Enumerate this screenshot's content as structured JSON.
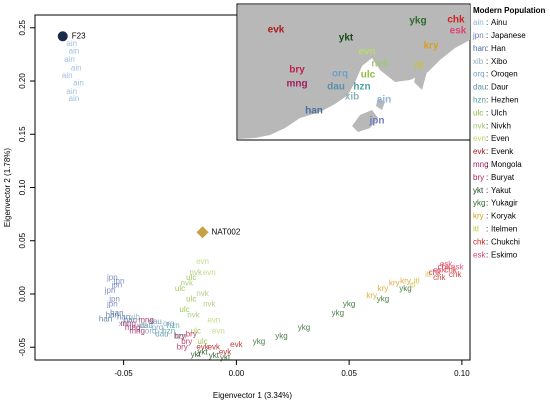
{
  "chart_data": {
    "type": "scatter",
    "xlabel": "Eigenvector 1 (3.34%)",
    "ylabel": "Eigenvector 2 (1.78%)",
    "xlim": [
      -0.0893,
      0.1036
    ],
    "ylim": [
      -0.062,
      0.262
    ],
    "xticks": [
      -0.05,
      {
        "value": 0,
        "label": "0.00"
      },
      0.05,
      {
        "value": 0.1,
        "label": "0.10"
      }
    ],
    "yticks": [
      -0.05,
      {
        "value": 0,
        "label": "0.00"
      },
      0.05,
      {
        "value": 0.1,
        "label": "0.10"
      },
      0.15,
      {
        "value": 0.2,
        "label": "0.20"
      },
      0.25
    ],
    "legend_title": "Modern Population",
    "series": [
      {
        "code": "ain",
        "name": "Ainu",
        "color": "#8fb4d9",
        "x": [
          -0.073,
          -0.072,
          -0.074,
          -0.071,
          -0.075,
          -0.07,
          -0.073,
          -0.072
        ],
        "y": [
          0.235,
          0.228,
          0.22,
          0.212,
          0.205,
          0.198,
          0.19,
          0.183
        ]
      },
      {
        "code": "jpn",
        "name": "Japanese",
        "color": "#6f7fc0",
        "x": [
          -0.055,
          -0.053,
          -0.056,
          -0.054,
          -0.052,
          -0.055
        ],
        "y": [
          0.015,
          0.008,
          0.003,
          -0.005,
          0.012,
          -0.01
        ]
      },
      {
        "code": "han",
        "name": "Han",
        "color": "#4a6fa0",
        "x": [
          -0.055,
          -0.05,
          -0.058,
          -0.053,
          -0.047
        ],
        "y": [
          -0.02,
          -0.022,
          -0.024,
          -0.018,
          -0.025
        ]
      },
      {
        "code": "xib",
        "name": "Xibo",
        "color": "#8fb0b8",
        "x": [
          -0.05,
          -0.045,
          -0.042
        ],
        "y": [
          -0.028,
          -0.022,
          -0.03
        ]
      },
      {
        "code": "orq",
        "name": "Oroqen",
        "color": "#6fa0c8",
        "x": [
          -0.035,
          -0.03,
          -0.038
        ],
        "y": [
          -0.032,
          -0.028,
          -0.035
        ]
      },
      {
        "code": "dau",
        "name": "Daur",
        "color": "#5b8fa8",
        "x": [
          -0.04,
          -0.036,
          -0.033
        ],
        "y": [
          -0.03,
          -0.026,
          -0.038
        ]
      },
      {
        "code": "hzn",
        "name": "Hezhen",
        "color": "#4fa0a0",
        "x": [
          -0.03,
          -0.025,
          -0.028
        ],
        "y": [
          -0.035,
          -0.04,
          -0.03
        ]
      },
      {
        "code": "ulc",
        "name": "Ulch",
        "color": "#8fc040",
        "x": [
          -0.025,
          -0.02,
          -0.023,
          -0.018,
          -0.015,
          -0.02
        ],
        "y": [
          0.005,
          -0.005,
          -0.015,
          -0.035,
          -0.045,
          0.015
        ]
      },
      {
        "code": "nvk",
        "name": "Nivkh",
        "color": "#a0c878",
        "x": [
          -0.018,
          -0.022,
          -0.015,
          -0.012,
          -0.019
        ],
        "y": [
          0.02,
          0.01,
          0.0,
          -0.01,
          -0.02
        ]
      },
      {
        "code": "evn",
        "name": "Even",
        "color": "#b8d870",
        "x": [
          -0.015,
          -0.012,
          -0.01,
          -0.008
        ],
        "y": [
          0.03,
          0.02,
          -0.025,
          -0.035
        ]
      },
      {
        "code": "evk",
        "name": "Evenk",
        "color": "#b01818",
        "x": [
          -0.01,
          -0.005,
          -0.015,
          0.0
        ],
        "y": [
          -0.05,
          -0.055,
          -0.05,
          -0.048
        ]
      },
      {
        "code": "mng",
        "name": "Mongola",
        "color": "#a02060",
        "x": [
          -0.048,
          -0.044,
          -0.04,
          -0.046
        ],
        "y": [
          -0.028,
          -0.035,
          -0.025,
          -0.032
        ]
      },
      {
        "code": "bry",
        "name": "Buryat",
        "color": "#c02050",
        "x": [
          -0.025,
          -0.022,
          -0.02,
          -0.024
        ],
        "y": [
          -0.04,
          -0.045,
          -0.038,
          -0.05
        ]
      },
      {
        "code": "ykt",
        "name": "Yakut",
        "color": "#1a4a1a",
        "x": [
          -0.015,
          -0.01,
          -0.005,
          -0.018
        ],
        "y": [
          -0.055,
          -0.058,
          -0.06,
          -0.057
        ]
      },
      {
        "code": "ykg",
        "name": "Yukagir",
        "color": "#2d6a2d",
        "x": [
          0.02,
          0.03,
          0.045,
          0.05,
          0.065,
          0.075,
          0.01
        ],
        "y": [
          -0.04,
          -0.032,
          -0.018,
          -0.01,
          -0.005,
          0.005,
          -0.045
        ]
      },
      {
        "code": "kry",
        "name": "Koryak",
        "color": "#d8a020",
        "x": [
          0.065,
          0.07,
          0.075,
          0.06
        ],
        "y": [
          0.005,
          0.01,
          0.012,
          -0.002
        ]
      },
      {
        "code": "itl",
        "name": "Itelmen",
        "color": "#c8c040",
        "x": [
          0.08,
          0.085,
          0.078
        ],
        "y": [
          0.012,
          0.018,
          0.008
        ]
      },
      {
        "code": "chk",
        "name": "Chukchi",
        "color": "#d02020",
        "x": [
          0.088,
          0.092,
          0.095,
          0.09,
          0.097
        ],
        "y": [
          0.02,
          0.025,
          0.022,
          0.015,
          0.018
        ]
      },
      {
        "code": "esk",
        "name": "Eskimo",
        "color": "#e04070",
        "x": [
          0.093,
          0.098,
          0.09
        ],
        "y": [
          0.028,
          0.025,
          0.022
        ]
      }
    ],
    "ancient": [
      {
        "name": "F23",
        "color": "#1b2a4a",
        "x": -0.077,
        "y": 0.242,
        "marker": "circle"
      },
      {
        "name": "NAT002",
        "color": "#c9a040",
        "x": -0.015,
        "y": 0.058,
        "marker": "diamond"
      }
    ]
  }
}
